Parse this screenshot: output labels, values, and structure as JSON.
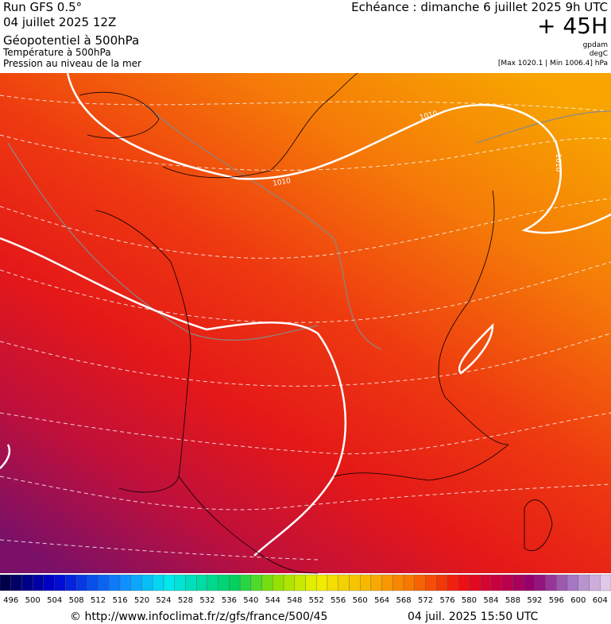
{
  "header": {
    "run": "Run GFS 0.5°",
    "run_date": "04 juillet 2025 12Z",
    "field_1": "Géopotentiel à 500hPa",
    "field_2": "Température à 500hPa",
    "field_3": "Pression au niveau de la mer",
    "valid": "Echéance : dimanche 6 juillet 2025 9h UTC",
    "lead": "+ 45H",
    "unit_1": "gpdam",
    "unit_2": "degC",
    "pressure_range": "[Max 1020.1 | Min 1006.4] hPa"
  },
  "contour_labels": [
    "1010",
    "1010",
    "1010"
  ],
  "colorbar": {
    "labels": [
      496,
      500,
      504,
      508,
      512,
      516,
      520,
      524,
      528,
      532,
      536,
      540,
      544,
      548,
      552,
      556,
      560,
      564,
      568,
      572,
      576,
      580,
      584,
      588,
      592,
      596,
      600,
      604
    ]
  },
  "footer": {
    "source": "© http://www.infoclimat.fr/z/gfs/france/500/45",
    "generated": "04 juil. 2025 15:50 UTC"
  }
}
